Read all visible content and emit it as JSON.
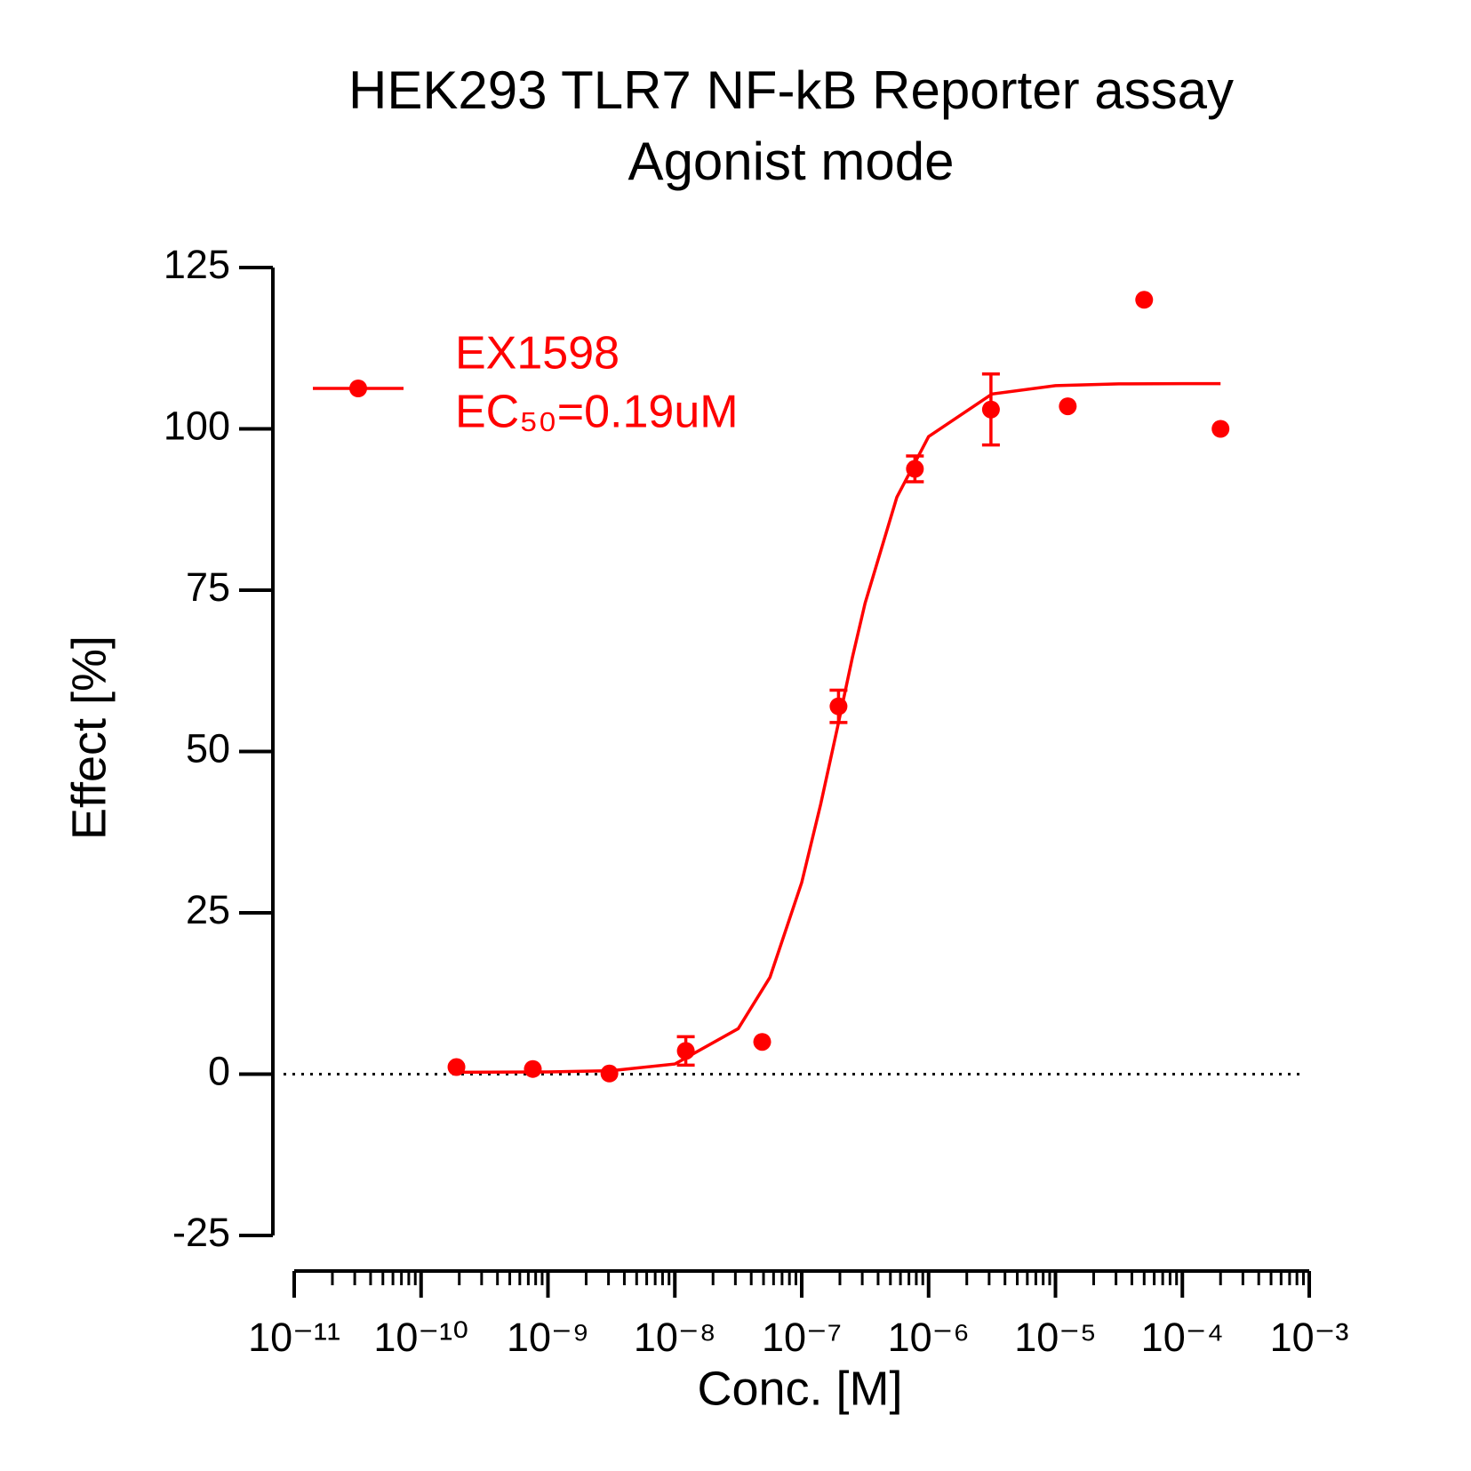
{
  "chart_data": {
    "type": "scatter",
    "title": "HEK293 TLR7 NF-kB Reporter assay",
    "subtitle": "Agonist mode",
    "x_label": "Conc. [M]",
    "y_label": "Effect  [%]",
    "x_scale": "log",
    "xlim": [
      1e-11,
      0.001
    ],
    "xticks": [
      {
        "value": 1e-11,
        "label": "10⁻¹¹"
      },
      {
        "value": 1e-10,
        "label": "10⁻¹⁰"
      },
      {
        "value": 1e-09,
        "label": "10⁻⁹"
      },
      {
        "value": 1e-08,
        "label": "10⁻⁸"
      },
      {
        "value": 1e-07,
        "label": "10⁻⁷"
      },
      {
        "value": 1e-06,
        "label": "10⁻⁶"
      },
      {
        "value": 1e-05,
        "label": "10⁻⁵"
      },
      {
        "value": 0.0001,
        "label": "10⁻⁴"
      },
      {
        "value": 0.001,
        "label": "10⁻³"
      }
    ],
    "ylim": [
      -25,
      125
    ],
    "yticks": [
      -25,
      0,
      25,
      50,
      75,
      100,
      125
    ],
    "zero_line": true,
    "legend": "top-left",
    "series": [
      {
        "name": "EX1598",
        "color": "#ff0000",
        "x": [
          1.9e-10,
          7.6e-10,
          3.05e-09,
          1.22e-08,
          4.88e-08,
          1.95e-07,
          7.8e-07,
          3.1e-06,
          1.25e-05,
          5e-05,
          0.0002
        ],
        "values": [
          1.1,
          0.8,
          0.1,
          3.6,
          5.0,
          57,
          93.8,
          103,
          103.5,
          120,
          100
        ],
        "errors": [
          null,
          null,
          null,
          2.2,
          null,
          2.5,
          2,
          5.5,
          null,
          null,
          null
        ]
      }
    ],
    "annotation": "EC₅₀=0.19uM",
    "fit": {
      "color": "#ff0000",
      "x": [
        2e-10,
        1e-09,
        3.16e-09,
        1e-08,
        3.16e-08,
        5.62e-08,
        1e-07,
        1.41e-07,
        1.91e-07,
        2.51e-07,
        3.16e-07,
        5.62e-07,
        1e-06,
        3.16e-06,
        1e-05,
        3.16e-05,
        0.0001,
        0.0002
      ],
      "values": [
        0.3,
        0.34,
        0.53,
        1.57,
        7.05,
        15.0,
        29.7,
        41.8,
        53.65,
        64.6,
        73.0,
        89.4,
        98.8,
        105.4,
        106.7,
        106.97,
        107,
        107
      ]
    }
  }
}
